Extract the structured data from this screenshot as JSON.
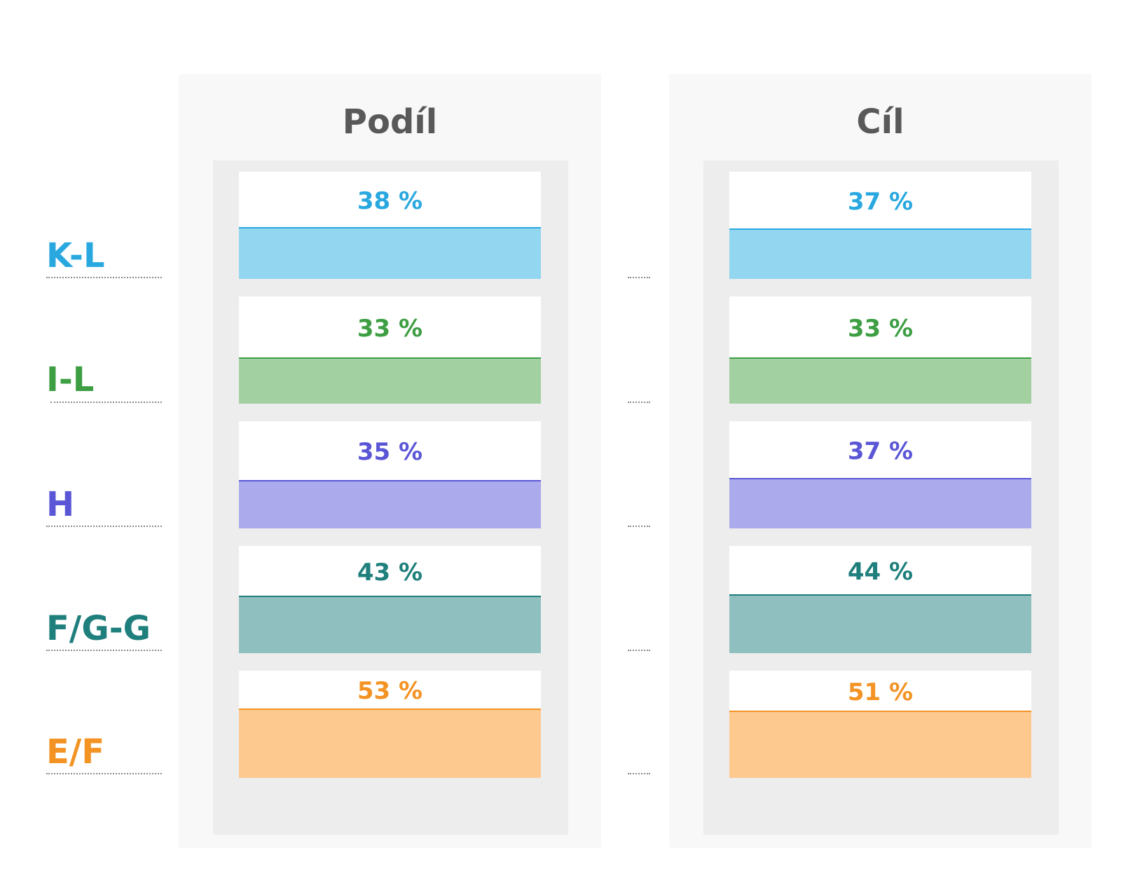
{
  "chart_data": {
    "type": "bar",
    "categories": [
      "K-L",
      "I-L",
      "H",
      "F/G-G",
      "E/F"
    ],
    "series": [
      {
        "name": "Podíl",
        "values": [
          38,
          33,
          35,
          43,
          53
        ],
        "labels": [
          "38 %",
          "33 %",
          "35 %",
          "43 %",
          "53 %"
        ]
      },
      {
        "name": "Cíl",
        "values": [
          37,
          33,
          37,
          44,
          51
        ],
        "labels": [
          "37 %",
          "33 %",
          "37 %",
          "44 %",
          "51 %"
        ]
      }
    ],
    "ylim": [
      0,
      100
    ],
    "colors": [
      "#29a8e0",
      "#3d9e43",
      "#5a56d6",
      "#1f7f7c",
      "#f39324"
    ],
    "fill_colors": [
      "#93d6ef",
      "#a2d0a1",
      "#aaaaec",
      "#8fc0bf",
      "#fec98f"
    ],
    "panels": [
      {
        "title": "Podíl"
      },
      {
        "title": "Cíl"
      }
    ]
  }
}
